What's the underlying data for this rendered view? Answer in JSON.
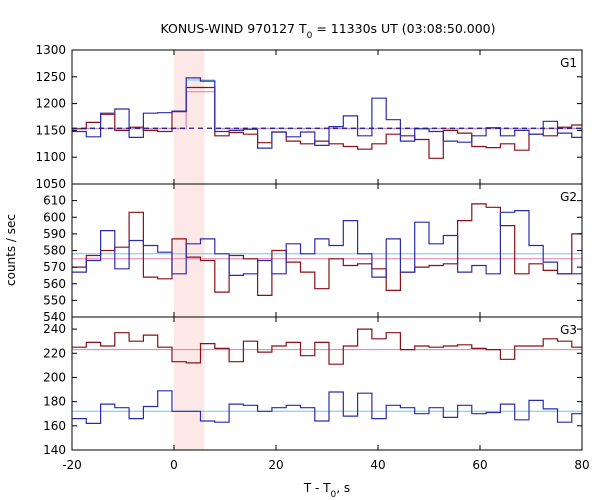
{
  "chart_data": {
    "type": "line",
    "title": {
      "main": "KONUS-WIND 970127 T",
      "sub": "0",
      "rest": " = 11330s UT (03:08:50.000)"
    },
    "xlabel": {
      "main": "T - T",
      "sub": "0",
      "rest": ", s"
    },
    "ylabel": "counts / sec",
    "xlim": [
      -20,
      80
    ],
    "x_ticks": [
      -20,
      0,
      20,
      40,
      60,
      80
    ],
    "highlight_x": [
      0,
      6
    ],
    "colors": {
      "red": "#8b0f14",
      "blue": "#2b2bb0",
      "cyan": "#66c8e8",
      "pink": "#e07fb0",
      "dashed": "#1a1a8c",
      "highlight": "#fde8e8"
    },
    "panels": [
      {
        "label": "G1",
        "ylim": [
          1050,
          1300
        ],
        "y_ticks": [
          1050,
          1100,
          1150,
          1200,
          1250,
          1300
        ],
        "bin_edges": [
          -20,
          -17.2,
          -14.4,
          -11.6,
          -8.8,
          -6,
          -3.2,
          -0.4,
          2.4,
          5.2,
          8,
          10.8,
          13.6,
          16.4,
          19.2,
          22,
          24.8,
          27.6,
          30.4,
          33.2,
          36,
          38.8,
          41.6,
          44.4,
          47.2,
          50,
          52.8,
          55.6,
          58.4,
          61.2,
          64,
          66.8,
          69.6,
          72.4,
          75.2,
          78,
          80
        ],
        "series": [
          {
            "color": "red",
            "values": [
              1153,
              1165,
              1180,
              1150,
              1156,
              1150,
              1148,
              1185,
              1230,
              1230,
              1140,
              1146,
              1143,
              1127,
              1147,
              1130,
              1125,
              1130,
              1125,
              1120,
              1115,
              1125,
              1143,
              1140,
              1133,
              1098,
              1150,
              1145,
              1120,
              1118,
              1125,
              1113,
              1143,
              1140,
              1156,
              1160
            ]
          },
          {
            "color": "blue",
            "values": [
              1148,
              1138,
              1182,
              1190,
              1137,
              1182,
              1183,
              1186,
              1248,
              1242,
              1148,
              1150,
              1152,
              1117,
              1147,
              1138,
              1147,
              1122,
              1157,
              1177,
              1140,
              1210,
              1170,
              1130,
              1153,
              1148,
              1130,
              1128,
              1140,
              1155,
              1140,
              1150,
              1143,
              1167,
              1145,
              1137
            ]
          },
          {
            "color": "cyan",
            "values": [
              1154,
              1154,
              1154,
              1154,
              1154,
              1154,
              1154,
              1154,
              1244,
              1244,
              1154,
              1154,
              1154,
              1154,
              1154,
              1154,
              1154,
              1154,
              1154,
              1154,
              1154,
              1154,
              1154,
              1154,
              1154,
              1154,
              1154,
              1154,
              1154,
              1154,
              1154,
              1154,
              1154,
              1154,
              1154,
              1154
            ]
          },
          {
            "color": "pink",
            "values": [
              1153,
              1153,
              1153,
              1153,
              1153,
              1153,
              1153,
              1153,
              1222,
              1222,
              1153,
              1153,
              1153,
              1153,
              1153,
              1153,
              1153,
              1153,
              1153,
              1153,
              1153,
              1153,
              1153,
              1153,
              1153,
              1153,
              1153,
              1153,
              1153,
              1153,
              1153,
              1153,
              1153,
              1153,
              1153,
              1153
            ]
          }
        ],
        "dashed_level": 1154
      },
      {
        "label": "G2",
        "ylim": [
          540,
          620
        ],
        "y_ticks": [
          540,
          550,
          560,
          570,
          580,
          590,
          600,
          610
        ],
        "bin_edges": [
          -20,
          -17.2,
          -14.4,
          -11.6,
          -8.8,
          -6,
          -3.2,
          -0.4,
          2.4,
          5.2,
          8,
          10.8,
          13.6,
          16.4,
          19.2,
          22,
          24.8,
          27.6,
          30.4,
          33.2,
          36,
          38.8,
          41.6,
          44.4,
          47.2,
          50,
          52.8,
          55.6,
          58.4,
          61.2,
          64,
          66.8,
          69.6,
          72.4,
          75.2,
          78,
          80
        ],
        "series": [
          {
            "color": "red",
            "values": [
              570,
              577,
              580,
              582,
              603,
              564,
              563,
              587,
              576,
              574,
              555,
              577,
              575,
              553,
              580,
              573,
              567,
              557,
              575,
              571,
              572,
              569,
              556,
              567,
              570,
              571,
              572,
              598,
              608,
              606,
              595,
              566,
              572,
              568,
              566,
              590
            ]
          },
          {
            "color": "blue",
            "values": [
              567,
              574,
              592,
              569,
              586,
              583,
              579,
              566,
              584,
              587,
              578,
              565,
              566,
              574,
              566,
              584,
              578,
              587,
              583,
              598,
              578,
              564,
              587,
              567,
              597,
              584,
              589,
              567,
              571,
              566,
              603,
              604,
              583,
              573,
              566,
              566
            ]
          },
          {
            "color": "cyan",
            "values": [
              578,
              578,
              578,
              578,
              578,
              578,
              578,
              578,
              578,
              578,
              578,
              578,
              578,
              578,
              578,
              578,
              578,
              578,
              578,
              578,
              578,
              578,
              578,
              578,
              578,
              578,
              578,
              578,
              578,
              578,
              578,
              578,
              578,
              578,
              578,
              578
            ]
          },
          {
            "color": "pink",
            "values": [
              575,
              575,
              575,
              575,
              575,
              575,
              575,
              575,
              575,
              575,
              575,
              575,
              575,
              575,
              575,
              575,
              575,
              575,
              575,
              575,
              575,
              575,
              575,
              575,
              575,
              575,
              575,
              575,
              575,
              575,
              575,
              575,
              575,
              575,
              575,
              575
            ]
          }
        ]
      },
      {
        "label": "G3",
        "ylim": [
          140,
          250
        ],
        "y_ticks": [
          140,
          160,
          180,
          200,
          220,
          240
        ],
        "bin_edges": [
          -20,
          -17.2,
          -14.4,
          -11.6,
          -8.8,
          -6,
          -3.2,
          -0.4,
          2.4,
          5.2,
          8,
          10.8,
          13.6,
          16.4,
          19.2,
          22,
          24.8,
          27.6,
          30.4,
          33.2,
          36,
          38.8,
          41.6,
          44.4,
          47.2,
          50,
          52.8,
          55.6,
          58.4,
          61.2,
          64,
          66.8,
          69.6,
          72.4,
          75.2,
          78,
          80
        ],
        "series": [
          {
            "color": "red",
            "values": [
              225,
              229,
              226,
              237,
              230,
              235,
              225,
              213,
              212,
              228,
              224,
              213,
              230,
              221,
              226,
              229,
              218,
              229,
              211,
              226,
              240,
              232,
              237,
              223,
              226,
              225,
              226,
              227,
              224,
              223,
              215,
              226,
              226,
              232,
              230,
              225
            ]
          },
          {
            "color": "blue",
            "values": [
              166,
              162,
              178,
              175,
              166,
              176,
              189,
              172,
              172,
              164,
              163,
              178,
              177,
              172,
              175,
              177,
              175,
              164,
              188,
              168,
              187,
              166,
              177,
              175,
              170,
              175,
              167,
              177,
              170,
              171,
              178,
              165,
              181,
              174,
              163,
              170
            ]
          },
          {
            "color": "cyan",
            "values": [
              172,
              172,
              172,
              172,
              172,
              172,
              172,
              172,
              172,
              172,
              172,
              172,
              172,
              172,
              172,
              172,
              172,
              172,
              172,
              172,
              172,
              172,
              172,
              172,
              172,
              172,
              172,
              172,
              172,
              172,
              172,
              172,
              172,
              172,
              172,
              172
            ]
          },
          {
            "color": "pink",
            "values": [
              223,
              223,
              223,
              223,
              223,
              223,
              223,
              223,
              223,
              223,
              223,
              223,
              223,
              223,
              223,
              223,
              223,
              223,
              223,
              223,
              223,
              223,
              223,
              223,
              223,
              223,
              223,
              223,
              223,
              223,
              223,
              223,
              223,
              223,
              223,
              223
            ]
          }
        ]
      }
    ]
  }
}
